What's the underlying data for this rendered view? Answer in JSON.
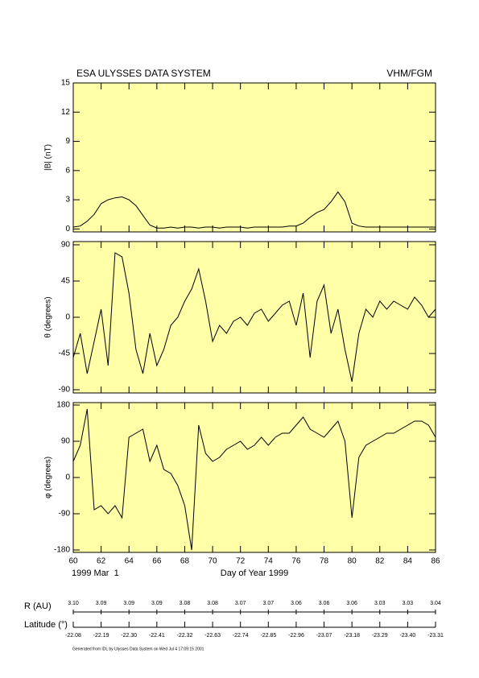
{
  "header": {
    "title": "ESA ULYSSES DATA SYSTEM",
    "instrument": "VHM/FGM"
  },
  "chart_data": [
    {
      "type": "line",
      "ylabel": "|B| (nT)",
      "color": "#000000",
      "background": "#ffffa8",
      "xlim": [
        60,
        86
      ],
      "xticks": [
        60,
        62,
        64,
        66,
        68,
        70,
        72,
        74,
        76,
        78,
        80,
        82,
        84,
        86
      ],
      "ylim": [
        -0.3,
        15
      ],
      "yticks": [
        0,
        3,
        6,
        9,
        12,
        15
      ],
      "x": [
        60,
        60.5,
        61,
        61.5,
        62,
        62.5,
        63,
        63.5,
        64,
        64.5,
        65,
        65.5,
        66,
        66.5,
        67,
        67.5,
        68,
        68.5,
        69,
        69.5,
        70,
        70.5,
        71,
        71.5,
        72,
        72.5,
        73,
        73.5,
        74,
        74.5,
        75,
        75.5,
        76,
        76.5,
        77,
        77.5,
        78,
        78.5,
        79,
        79.5,
        80,
        80.5,
        81,
        81.5,
        82,
        82.5,
        83,
        83.5,
        84,
        84.5,
        85,
        85.5,
        86
      ],
      "values": [
        0.2,
        0.3,
        0.8,
        1.5,
        2.6,
        3.0,
        3.2,
        3.3,
        3.0,
        2.4,
        1.4,
        0.4,
        0.1,
        0.1,
        0.2,
        0.1,
        0.2,
        0.2,
        0.1,
        0.2,
        0.2,
        0.1,
        0.2,
        0.2,
        0.2,
        0.1,
        0.2,
        0.2,
        0.2,
        0.2,
        0.2,
        0.3,
        0.3,
        0.6,
        1.2,
        1.7,
        2.0,
        2.8,
        3.8,
        2.8,
        0.6,
        0.3,
        0.2,
        0.2,
        0.2,
        0.2,
        0.2,
        0.2,
        0.2,
        0.2,
        0.2,
        0.2,
        0.2
      ]
    },
    {
      "type": "line",
      "ylabel": "θ (degrees)",
      "color": "#000000",
      "background": "#ffffa8",
      "xlim": [
        60,
        86
      ],
      "xticks": [
        60,
        62,
        64,
        66,
        68,
        70,
        72,
        74,
        76,
        78,
        80,
        82,
        84,
        86
      ],
      "ylim": [
        -94,
        94
      ],
      "yticks": [
        -90,
        -45,
        0,
        45,
        90
      ],
      "x": [
        60,
        60.5,
        61,
        61.5,
        62,
        62.5,
        63,
        63.5,
        64,
        64.5,
        65,
        65.5,
        66,
        66.5,
        67,
        67.5,
        68,
        68.5,
        69,
        69.5,
        70,
        70.5,
        71,
        71.5,
        72,
        72.5,
        73,
        73.5,
        74,
        74.5,
        75,
        75.5,
        76,
        76.5,
        77,
        77.5,
        78,
        78.5,
        79,
        79.5,
        80,
        80.5,
        81,
        81.5,
        82,
        82.5,
        83,
        83.5,
        84,
        84.5,
        85,
        85.5,
        86
      ],
      "values": [
        -50,
        -20,
        -70,
        -30,
        10,
        -60,
        80,
        75,
        30,
        -40,
        -70,
        -20,
        -60,
        -40,
        -10,
        0,
        20,
        35,
        60,
        20,
        -30,
        -10,
        -20,
        -5,
        0,
        -10,
        5,
        10,
        -5,
        5,
        15,
        20,
        -10,
        30,
        -50,
        20,
        40,
        -20,
        10,
        -40,
        -80,
        -20,
        10,
        0,
        20,
        10,
        20,
        15,
        10,
        25,
        15,
        0,
        10
      ]
    },
    {
      "type": "line",
      "ylabel": "φ (degrees)",
      "xlabel": "Day of Year 1999",
      "start_label": "1999 Mar  1",
      "color": "#000000",
      "background": "#ffffa8",
      "xlim": [
        60,
        86
      ],
      "xticks": [
        60,
        62,
        64,
        66,
        68,
        70,
        72,
        74,
        76,
        78,
        80,
        82,
        84,
        86
      ],
      "ylim": [
        -186,
        186
      ],
      "yticks": [
        -180,
        -90,
        0,
        90,
        180
      ],
      "x": [
        60,
        60.5,
        61,
        61.5,
        62,
        62.5,
        63,
        63.5,
        64,
        64.5,
        65,
        65.5,
        66,
        66.5,
        67,
        67.5,
        68,
        68.5,
        69,
        69.5,
        70,
        70.5,
        71,
        71.5,
        72,
        72.5,
        73,
        73.5,
        74,
        74.5,
        75,
        75.5,
        76,
        76.5,
        77,
        77.5,
        78,
        78.5,
        79,
        79.5,
        80,
        80.5,
        81,
        81.5,
        82,
        82.5,
        83,
        83.5,
        84,
        84.5,
        85,
        85.5,
        86
      ],
      "values": [
        40,
        80,
        170,
        -80,
        -70,
        -90,
        -70,
        -100,
        100,
        110,
        120,
        40,
        80,
        20,
        10,
        -20,
        -70,
        -180,
        130,
        60,
        40,
        50,
        70,
        80,
        90,
        70,
        80,
        100,
        80,
        100,
        110,
        110,
        130,
        150,
        120,
        110,
        100,
        120,
        140,
        90,
        -100,
        50,
        80,
        90,
        100,
        110,
        110,
        120,
        130,
        140,
        140,
        130,
        100
      ]
    }
  ],
  "ephemeris": {
    "r_label": "R (AU)",
    "r_values": [
      "3.10",
      "3.09",
      "3.09",
      "3.09",
      "3.08",
      "3.08",
      "3.07",
      "3.07",
      "3.06",
      "3.06",
      "3.06",
      "3.03",
      "3.03",
      "3.04"
    ],
    "lat_label": "Latitude (°)",
    "lat_values": [
      "-22.08",
      "-22.19",
      "-22.30",
      "-22.41",
      "-22.32",
      "-22.63",
      "-22.74",
      "-22.85",
      "-22.96",
      "-23.07",
      "-23.18",
      "-23.29",
      "-23.40",
      "-23.31"
    ]
  },
  "footer": "Generated from IDL by Ulysses Data System on Wed Jul  4 17:09:15 2001"
}
